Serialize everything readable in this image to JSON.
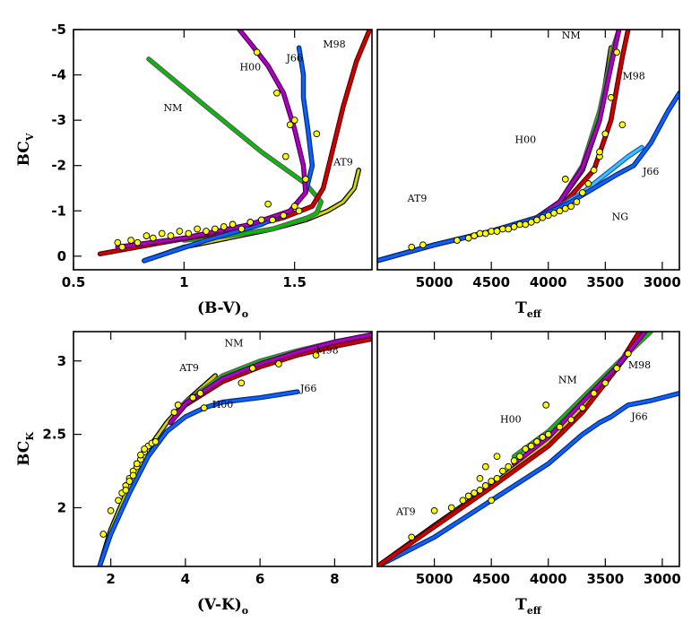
{
  "chart_data": [
    {
      "type": "line",
      "panel": "top-left",
      "ylabel": "BC",
      "ylabel_sub": "V",
      "xlabel": "(B-V)",
      "xlabel_sub": "o",
      "xlim": [
        0.5,
        1.85
      ],
      "ylim": [
        0.3,
        -5.0
      ],
      "xticks": [
        0.5,
        1,
        1.5
      ],
      "xtick_labels": [
        "0.5",
        "1",
        "1.5"
      ],
      "yticks": [
        0,
        -1,
        -2,
        -3,
        -4,
        -5
      ],
      "ytick_labels": [
        "0",
        "-1",
        "-2",
        "-3",
        "-4",
        "-5"
      ],
      "series": [
        {
          "name": "AT9",
          "color": "#d4d400",
          "edge": "#000000",
          "x": [
            0.82,
            1.0,
            1.2,
            1.4,
            1.55,
            1.65,
            1.72,
            1.77,
            1.79
          ],
          "y": [
            0.1,
            -0.2,
            -0.4,
            -0.6,
            -0.8,
            -1.0,
            -1.2,
            -1.5,
            -1.9
          ]
        },
        {
          "name": "NM",
          "color": "#00c000",
          "edge": "#606060",
          "x": [
            0.84,
            1.1,
            1.35,
            1.55,
            1.62,
            1.6,
            1.56,
            1.4,
            1.2,
            1.0
          ],
          "y": [
            -4.35,
            -3.3,
            -2.3,
            -1.6,
            -1.2,
            -0.95,
            -0.85,
            -0.6,
            -0.45,
            -0.35
          ]
        },
        {
          "name": "M98",
          "color": "#d00000",
          "edge": "#600000",
          "x": [
            0.62,
            0.9,
            1.2,
            1.45,
            1.58,
            1.63,
            1.67,
            1.72,
            1.78,
            1.84
          ],
          "y": [
            -0.05,
            -0.3,
            -0.55,
            -0.85,
            -1.1,
            -1.5,
            -2.3,
            -3.3,
            -4.3,
            -5.0
          ]
        },
        {
          "name": "J66",
          "color": "#1060ff",
          "edge": "#003080",
          "x": [
            0.82,
            1.1,
            1.35,
            1.48,
            1.55,
            1.58,
            1.56,
            1.54,
            1.54,
            1.52
          ],
          "y": [
            0.1,
            -0.35,
            -0.7,
            -1.0,
            -1.4,
            -2.0,
            -2.8,
            -3.5,
            -4.0,
            -4.6
          ]
        },
        {
          "name": "H00",
          "color": "#b000c0",
          "edge": "#500060",
          "x": [
            0.7,
            1.0,
            1.3,
            1.48,
            1.55,
            1.54,
            1.5,
            1.45,
            1.38,
            1.3,
            1.25
          ],
          "y": [
            -0.2,
            -0.4,
            -0.7,
            -1.0,
            -1.4,
            -2.0,
            -2.8,
            -3.6,
            -4.2,
            -4.7,
            -5.0
          ]
        }
      ],
      "points": {
        "color": "#ffff00",
        "x": [
          0.7,
          0.72,
          0.76,
          0.79,
          0.83,
          0.86,
          0.9,
          0.94,
          0.98,
          1.02,
          1.06,
          1.1,
          1.14,
          1.18,
          1.22,
          1.26,
          1.3,
          1.35,
          1.4,
          1.45,
          1.52,
          1.38,
          1.5,
          1.46,
          1.48,
          1.5,
          1.42,
          1.55,
          1.6,
          1.33
        ],
        "y": [
          -0.3,
          -0.2,
          -0.35,
          -0.3,
          -0.45,
          -0.4,
          -0.5,
          -0.45,
          -0.55,
          -0.5,
          -0.6,
          -0.55,
          -0.6,
          -0.65,
          -0.7,
          -0.6,
          -0.75,
          -0.8,
          -0.8,
          -0.9,
          -1.0,
          -1.15,
          -1.1,
          -2.2,
          -2.9,
          -3.0,
          -3.6,
          -1.7,
          -2.7,
          -4.5
        ]
      },
      "annotations": [
        {
          "text": "NM",
          "x": 0.95,
          "y": -3.2
        },
        {
          "text": "H00",
          "x": 1.3,
          "y": -4.1
        },
        {
          "text": "J66",
          "x": 1.5,
          "y": -4.3
        },
        {
          "text": "M98",
          "x": 1.68,
          "y": -4.6
        },
        {
          "text": "AT9",
          "x": 1.72,
          "y": -2.0
        }
      ]
    },
    {
      "type": "line",
      "panel": "top-right",
      "xlabel": "T",
      "xlabel_sub": "eff",
      "xlim": [
        5500,
        2850
      ],
      "ylim": [
        0.3,
        -5.0
      ],
      "xticks": [
        5000,
        4500,
        4000,
        3500,
        3000
      ],
      "xtick_labels": [
        "5000",
        "4500",
        "4000",
        "3500",
        "3000"
      ],
      "series": [
        {
          "name": "AT9",
          "color": "#d4d400",
          "edge": "#000000",
          "x": [
            5500,
            5000,
            4500,
            4100,
            3900,
            3700,
            3550,
            3450
          ],
          "y": [
            0.1,
            -0.25,
            -0.55,
            -0.85,
            -1.2,
            -1.9,
            -3.0,
            -4.6
          ]
        },
        {
          "name": "NM",
          "color": "#00c000",
          "edge": "#606060",
          "x": [
            5500,
            5000,
            4500,
            4100,
            3900,
            3700,
            3550,
            3430,
            3380
          ],
          "y": [
            0.1,
            -0.25,
            -0.55,
            -0.85,
            -1.2,
            -2.0,
            -3.2,
            -4.6,
            -5.0
          ]
        },
        {
          "name": "M98",
          "color": "#d00000",
          "edge": "#600000",
          "x": [
            5500,
            5000,
            4500,
            4100,
            3850,
            3600,
            3450,
            3350,
            3300
          ],
          "y": [
            0.1,
            -0.25,
            -0.55,
            -0.85,
            -1.2,
            -1.9,
            -3.0,
            -4.4,
            -5.0
          ]
        },
        {
          "name": "H00",
          "color": "#b000c0",
          "edge": "#500060",
          "x": [
            5500,
            5000,
            4500,
            4100,
            3900,
            3700,
            3550,
            3450,
            3380
          ],
          "y": [
            0.1,
            -0.25,
            -0.55,
            -0.85,
            -1.2,
            -1.95,
            -3.0,
            -4.2,
            -5.0
          ]
        },
        {
          "name": "NG",
          "color": "#40c0ff",
          "edge": "#1060c0",
          "x": [
            4100,
            3900,
            3700,
            3500,
            3300,
            3180
          ],
          "y": [
            -0.85,
            -1.1,
            -1.4,
            -1.8,
            -2.2,
            -2.4
          ]
        },
        {
          "name": "J66",
          "color": "#1060ff",
          "edge": "#003080",
          "x": [
            5500,
            5000,
            4500,
            4100,
            3800,
            3600,
            3400,
            3250,
            3100,
            2950,
            2850
          ],
          "y": [
            0.1,
            -0.25,
            -0.55,
            -0.85,
            -1.2,
            -1.5,
            -1.8,
            -2.0,
            -2.5,
            -3.2,
            -3.6
          ]
        }
      ],
      "points": {
        "color": "#ffff00",
        "x": [
          5200,
          5100,
          4800,
          4700,
          4650,
          4600,
          4550,
          4500,
          4450,
          4400,
          4350,
          4300,
          4250,
          4200,
          4150,
          4100,
          4050,
          4000,
          3950,
          3900,
          3850,
          3800,
          3750,
          3700,
          3650,
          3600,
          3550,
          3500,
          3450,
          3400,
          3350,
          3550,
          3850
        ],
        "y": [
          -0.2,
          -0.25,
          -0.35,
          -0.4,
          -0.45,
          -0.5,
          -0.5,
          -0.55,
          -0.55,
          -0.6,
          -0.6,
          -0.65,
          -0.7,
          -0.7,
          -0.75,
          -0.8,
          -0.85,
          -0.9,
          -0.95,
          -1.0,
          -1.05,
          -1.1,
          -1.2,
          -1.4,
          -1.6,
          -1.9,
          -2.2,
          -2.7,
          -3.5,
          -4.5,
          -2.9,
          -2.3,
          -1.7
        ]
      },
      "annotations": [
        {
          "text": "NM",
          "x": 3800,
          "y": -4.8
        },
        {
          "text": "M98",
          "x": 3250,
          "y": -3.9
        },
        {
          "text": "H00",
          "x": 4200,
          "y": -2.5
        },
        {
          "text": "J66",
          "x": 3100,
          "y": -1.8
        },
        {
          "text": "NG",
          "x": 3370,
          "y": -0.8
        },
        {
          "text": "AT9",
          "x": 5150,
          "y": -1.2
        }
      ]
    },
    {
      "type": "line",
      "panel": "bottom-left",
      "ylabel": "BC",
      "ylabel_sub": "K",
      "xlabel": "(V-K)",
      "xlabel_sub": "o",
      "xlim": [
        1.0,
        9.0
      ],
      "ylim": [
        1.6,
        3.2
      ],
      "xticks": [
        2,
        4,
        6,
        8
      ],
      "xtick_labels": [
        "2",
        "4",
        "6",
        "8"
      ],
      "yticks": [
        2,
        2.5,
        3
      ],
      "ytick_labels": [
        "2",
        "2.5",
        "3"
      ],
      "series": [
        {
          "name": "AT9",
          "color": "#d4d400",
          "edge": "#000000",
          "x": [
            1.7,
            2.0,
            2.5,
            3.0,
            3.5,
            4.0,
            4.8
          ],
          "y": [
            1.6,
            1.85,
            2.15,
            2.4,
            2.58,
            2.72,
            2.9
          ]
        },
        {
          "name": "J66",
          "color": "#1060ff",
          "edge": "#003080",
          "x": [
            1.7,
            2.0,
            2.5,
            3.0,
            3.5,
            4.0,
            4.5,
            5.0,
            6.0,
            7.0
          ],
          "y": [
            1.6,
            1.82,
            2.1,
            2.35,
            2.52,
            2.62,
            2.68,
            2.72,
            2.75,
            2.79
          ]
        },
        {
          "name": "NM",
          "color": "#00c000",
          "edge": "#606060",
          "x": [
            3.6,
            4.0,
            5.0,
            6.0,
            7.0,
            8.0,
            9.0
          ],
          "y": [
            2.58,
            2.72,
            2.9,
            3.0,
            3.07,
            3.13,
            3.18
          ]
        },
        {
          "name": "M98",
          "color": "#d00000",
          "edge": "#600000",
          "x": [
            3.6,
            4.0,
            5.0,
            6.0,
            7.0,
            8.0,
            9.0
          ],
          "y": [
            2.58,
            2.7,
            2.86,
            2.96,
            3.04,
            3.1,
            3.15
          ]
        },
        {
          "name": "H00",
          "color": "#b000c0",
          "edge": "#500060",
          "x": [
            3.6,
            4.0,
            5.0,
            6.0,
            7.0,
            8.0,
            9.0
          ],
          "y": [
            2.58,
            2.71,
            2.88,
            2.98,
            3.06,
            3.13,
            3.18
          ]
        }
      ],
      "points": {
        "color": "#ffff00",
        "x": [
          1.8,
          2.0,
          2.2,
          2.3,
          2.4,
          2.5,
          2.6,
          2.7,
          2.8,
          2.9,
          3.0,
          3.1,
          3.2,
          2.5,
          2.7,
          2.9,
          3.7,
          3.8,
          4.2,
          4.4,
          5.5,
          5.8,
          6.5,
          7.5,
          4.5,
          2.6,
          2.4,
          2.8
        ],
        "y": [
          1.82,
          1.98,
          2.05,
          2.1,
          2.15,
          2.2,
          2.25,
          2.28,
          2.33,
          2.38,
          2.42,
          2.44,
          2.45,
          2.18,
          2.3,
          2.4,
          2.65,
          2.7,
          2.75,
          2.78,
          2.85,
          2.95,
          2.98,
          3.04,
          2.68,
          2.22,
          2.12,
          2.36
        ]
      },
      "annotations": [
        {
          "text": "NM",
          "x": 5.3,
          "y": 3.1
        },
        {
          "text": "AT9",
          "x": 4.1,
          "y": 2.93
        },
        {
          "text": "H00",
          "x": 5.0,
          "y": 2.68
        },
        {
          "text": "M98",
          "x": 7.8,
          "y": 3.05
        },
        {
          "text": "J66",
          "x": 7.3,
          "y": 2.79
        }
      ]
    },
    {
      "type": "line",
      "panel": "bottom-right",
      "xlabel": "T",
      "xlabel_sub": "eff",
      "xlim": [
        5500,
        2850
      ],
      "ylim": [
        1.6,
        3.2
      ],
      "xticks": [
        5000,
        4500,
        4000,
        3500,
        3000
      ],
      "xtick_labels": [
        "5000",
        "4500",
        "4000",
        "3500",
        "3000"
      ],
      "series": [
        {
          "name": "AT9",
          "color": "#d4d400",
          "edge": "#000000",
          "x": [
            5500,
            5000,
            4500,
            4000,
            3500,
            3300
          ],
          "y": [
            1.6,
            1.88,
            2.15,
            2.45,
            2.85,
            3.05
          ]
        },
        {
          "name": "J66",
          "color": "#1060ff",
          "edge": "#003080",
          "x": [
            5500,
            5000,
            4500,
            4000,
            3700,
            3550,
            3450,
            3300,
            3100,
            2850
          ],
          "y": [
            1.6,
            1.8,
            2.05,
            2.3,
            2.5,
            2.58,
            2.62,
            2.7,
            2.73,
            2.78
          ]
        },
        {
          "name": "M98",
          "color": "#d00000",
          "edge": "#600000",
          "x": [
            5500,
            5000,
            4500,
            4000,
            3700,
            3400,
            3200
          ],
          "y": [
            1.6,
            1.87,
            2.14,
            2.42,
            2.65,
            2.95,
            3.2
          ]
        },
        {
          "name": "NM",
          "color": "#00c000",
          "edge": "#606060",
          "x": [
            4300,
            4000,
            3700,
            3400,
            3100
          ],
          "y": [
            2.35,
            2.52,
            2.75,
            2.98,
            3.2
          ]
        },
        {
          "name": "H00",
          "color": "#b000c0",
          "edge": "#500060",
          "x": [
            4300,
            4000,
            3700,
            3400,
            3150
          ],
          "y": [
            2.3,
            2.48,
            2.72,
            2.96,
            3.2
          ]
        }
      ],
      "points": {
        "color": "#ffff00",
        "x": [
          5200,
          5000,
          4850,
          4750,
          4700,
          4650,
          4600,
          4550,
          4500,
          4450,
          4400,
          4350,
          4300,
          4250,
          4200,
          4150,
          4100,
          4050,
          4000,
          3900,
          3800,
          3700,
          3600,
          3500,
          3400,
          3300,
          4020,
          4600,
          4500,
          4550,
          4450
        ],
        "y": [
          1.8,
          1.98,
          2.0,
          2.05,
          2.08,
          2.1,
          2.12,
          2.15,
          2.18,
          2.2,
          2.25,
          2.28,
          2.32,
          2.35,
          2.4,
          2.42,
          2.45,
          2.48,
          2.5,
          2.55,
          2.6,
          2.68,
          2.78,
          2.85,
          2.95,
          3.05,
          2.7,
          2.2,
          2.05,
          2.28,
          2.35
        ]
      },
      "annotations": [
        {
          "text": "NM",
          "x": 3830,
          "y": 2.85
        },
        {
          "text": "M98",
          "x": 3200,
          "y": 2.95
        },
        {
          "text": "H00",
          "x": 4330,
          "y": 2.58
        },
        {
          "text": "J66",
          "x": 3200,
          "y": 2.6
        },
        {
          "text": "AT9",
          "x": 5250,
          "y": 1.95
        }
      ]
    }
  ]
}
